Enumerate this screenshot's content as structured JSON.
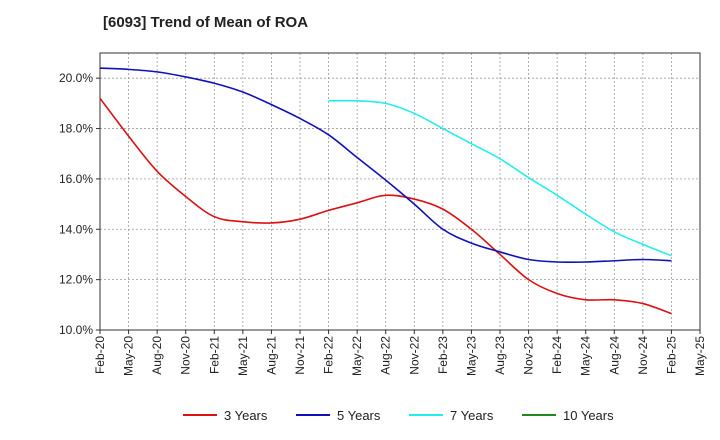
{
  "chart_data": {
    "type": "line",
    "title": "[6093]  Trend of Mean of ROA",
    "xlabel": "",
    "ylabel": "",
    "ylim": [
      10.0,
      21.0
    ],
    "y_ticks": [
      10.0,
      12.0,
      14.0,
      16.0,
      18.0,
      20.0
    ],
    "y_tick_labels": [
      "10.0%",
      "12.0%",
      "14.0%",
      "16.0%",
      "18.0%",
      "20.0%"
    ],
    "x_tick_labels": [
      "Feb-20",
      "May-20",
      "Aug-20",
      "Nov-20",
      "Feb-21",
      "May-21",
      "Aug-21",
      "Nov-21",
      "Feb-22",
      "May-22",
      "Aug-22",
      "Nov-22",
      "Feb-23",
      "May-23",
      "Aug-23",
      "Nov-23",
      "Feb-24",
      "May-24",
      "Aug-24",
      "Nov-24",
      "Feb-25",
      "May-25"
    ],
    "series": [
      {
        "name": "3 Years",
        "color": "#dd1111",
        "start_index": 0,
        "values": [
          19.2,
          17.7,
          16.3,
          15.3,
          14.5,
          14.3,
          14.25,
          14.4,
          14.75,
          15.05,
          15.35,
          15.2,
          14.8,
          14.0,
          13.0,
          12.0,
          11.45,
          11.2,
          11.2,
          11.05,
          10.65
        ]
      },
      {
        "name": "5 Years",
        "color": "#1111bb",
        "start_index": 0,
        "values": [
          20.4,
          20.35,
          20.25,
          20.05,
          19.8,
          19.45,
          18.95,
          18.4,
          17.75,
          16.85,
          15.95,
          15.0,
          14.0,
          13.45,
          13.1,
          12.8,
          12.7,
          12.7,
          12.75,
          12.8,
          12.75
        ]
      },
      {
        "name": "7 Years",
        "color": "#22eeee",
        "start_index": 8,
        "values": [
          19.1,
          19.1,
          19.0,
          18.6,
          18.0,
          17.4,
          16.8,
          16.05,
          15.35,
          14.6,
          13.9,
          13.4,
          12.95
        ]
      },
      {
        "name": "10 Years",
        "color": "#228822",
        "start_index": 0,
        "values": []
      }
    ],
    "legend": [
      "3 Years",
      "5 Years",
      "7 Years",
      "10 Years"
    ],
    "legend_position": "bottom",
    "grid": true
  }
}
